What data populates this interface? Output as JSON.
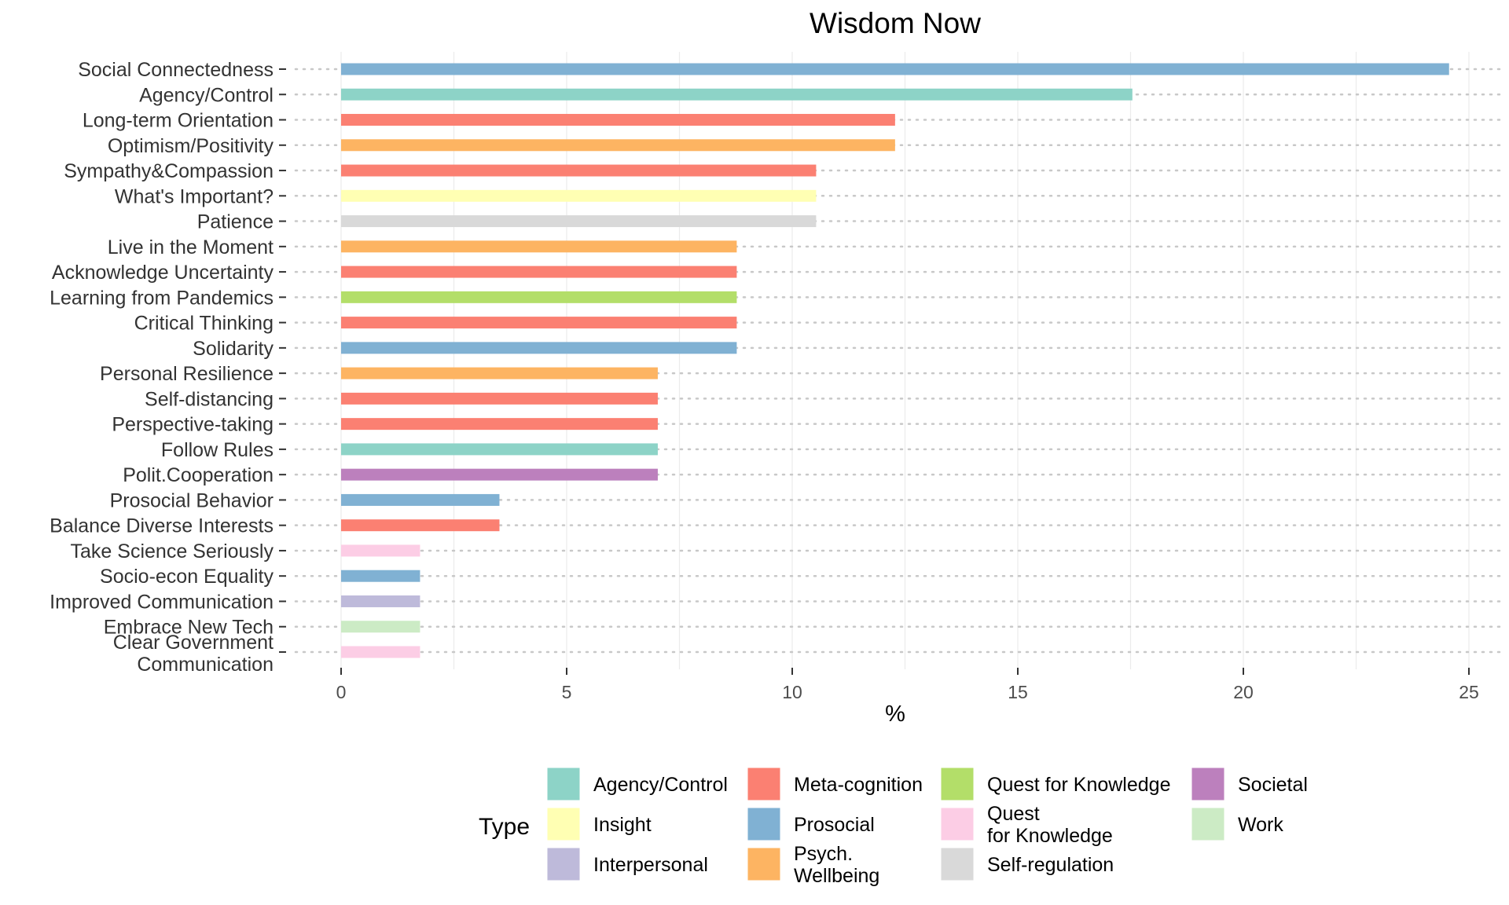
{
  "chart_data": {
    "type": "bar",
    "orientation": "horizontal",
    "title": "Wisdom Now",
    "xlabel": "%",
    "ylabel": "",
    "xlim": [
      0,
      25
    ],
    "xticks": [
      0,
      5,
      10,
      15,
      20,
      25
    ],
    "grid": true,
    "legend_position": "bottom",
    "categories": [
      "Social Connectedness",
      "Agency/Control",
      "Long-term Orientation",
      "Optimism/Positivity",
      "Sympathy&Compassion",
      "What's Important?",
      "Patience",
      "Live in the Moment",
      "Acknowledge Uncertainty",
      "Learning from Pandemics",
      "Critical Thinking",
      "Solidarity",
      "Personal Resilience",
      "Self-distancing",
      "Perspective-taking",
      "Follow Rules",
      "Polit.Cooperation",
      "Prosocial Behavior",
      "Balance Diverse Interests",
      "Take Science Seriously",
      "Socio-econ Equality",
      "Improved Communication",
      "Embrace New Tech",
      "Clear Government\nCommunication"
    ],
    "values": [
      24.56,
      17.54,
      12.28,
      12.28,
      10.53,
      10.53,
      10.53,
      8.77,
      8.77,
      8.77,
      8.77,
      8.77,
      7.02,
      7.02,
      7.02,
      7.02,
      7.02,
      3.51,
      3.51,
      1.75,
      1.75,
      1.75,
      1.75,
      1.75
    ],
    "types": [
      "Prosocial",
      "Agency/Control",
      "Meta-cognition",
      "Psych.\nWellbeing",
      "Meta-cognition",
      "Insight",
      "Self-regulation",
      "Psych.\nWellbeing",
      "Meta-cognition",
      "Quest for Knowledge",
      "Meta-cognition",
      "Prosocial",
      "Psych.\nWellbeing",
      "Meta-cognition",
      "Meta-cognition",
      "Agency/Control",
      "Societal",
      "Prosocial",
      "Meta-cognition",
      "Quest\nfor Knowledge",
      "Prosocial",
      "Interpersonal",
      "Work",
      "Quest\nfor Knowledge"
    ],
    "legend": {
      "title": "Type",
      "entries": [
        {
          "label": "Agency/Control",
          "color": "#8dd3c7"
        },
        {
          "label": "Insight",
          "color": "#ffffb3"
        },
        {
          "label": "Interpersonal",
          "color": "#bebada"
        },
        {
          "label": "Meta-cognition",
          "color": "#fb8072"
        },
        {
          "label": "Prosocial",
          "color": "#80b1d3"
        },
        {
          "label": "Psych.\nWellbeing",
          "color": "#fdb462"
        },
        {
          "label": "Quest for Knowledge",
          "color": "#b3de69"
        },
        {
          "label": "Quest\nfor Knowledge",
          "color": "#fccde5"
        },
        {
          "label": "Self-regulation",
          "color": "#d9d9d9"
        },
        {
          "label": "Societal",
          "color": "#bc80bd"
        },
        {
          "label": "Work",
          "color": "#ccebc5"
        }
      ]
    }
  }
}
